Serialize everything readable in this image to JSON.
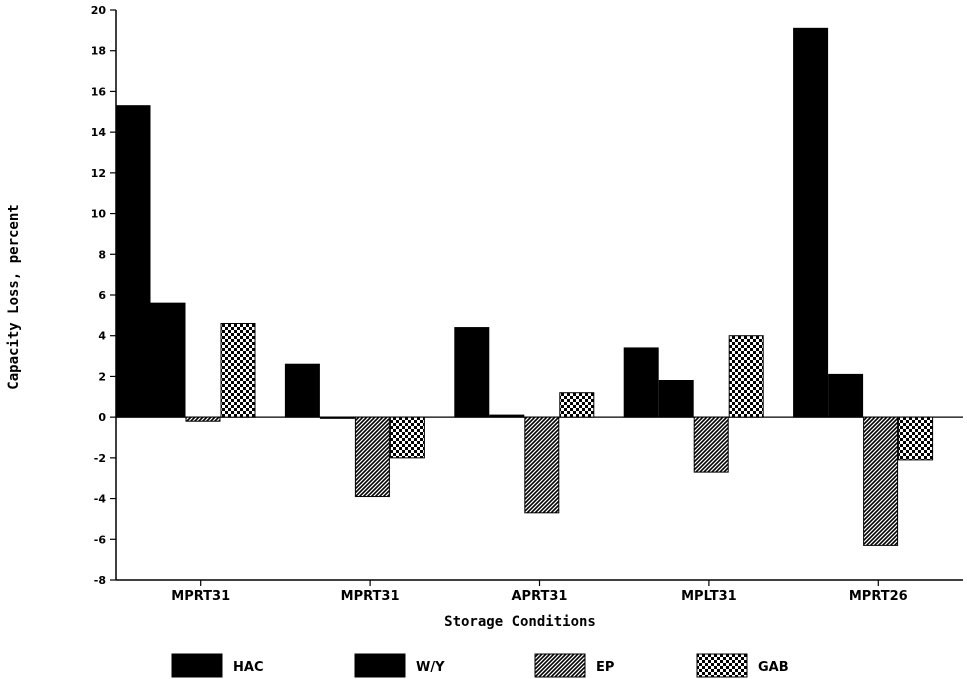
{
  "chart_data": {
    "type": "bar",
    "title": "",
    "xlabel": "Storage Conditions",
    "ylabel": "Capacity Loss, percent",
    "ylim": [
      -8,
      20
    ],
    "yticks": [
      20,
      18,
      16,
      14,
      12,
      10,
      8,
      6,
      4,
      2,
      0,
      -2,
      -4,
      -6,
      -8
    ],
    "ytick_labels": [
      "20",
      "18",
      "16",
      "14",
      "12",
      "10",
      "8",
      "6",
      "4",
      "2",
      "0",
      "-2",
      "-4",
      "-6",
      "-8"
    ],
    "categories": [
      "MPRT31",
      "MPRT31",
      "APRT31",
      "MPLT31",
      "MPRT26"
    ],
    "series": [
      {
        "name": "HAC",
        "values": [
          15.3,
          2.6,
          4.4,
          3.4,
          19.1
        ],
        "fill": "solid"
      },
      {
        "name": "W/Y",
        "values": [
          5.6,
          0,
          0.1,
          1.8,
          2.1
        ],
        "fill": "solid"
      },
      {
        "name": "EP",
        "values": [
          -0.2,
          -3.9,
          -4.7,
          -2.7,
          -6.3
        ],
        "fill": "hatch"
      },
      {
        "name": "GAB",
        "values": [
          4.6,
          -2.0,
          1.2,
          4.0,
          -2.1
        ],
        "fill": "checker"
      }
    ],
    "grid": false,
    "legend_position": "bottom"
  },
  "colors": {
    "bar": "#000000",
    "background": "#ffffff"
  }
}
